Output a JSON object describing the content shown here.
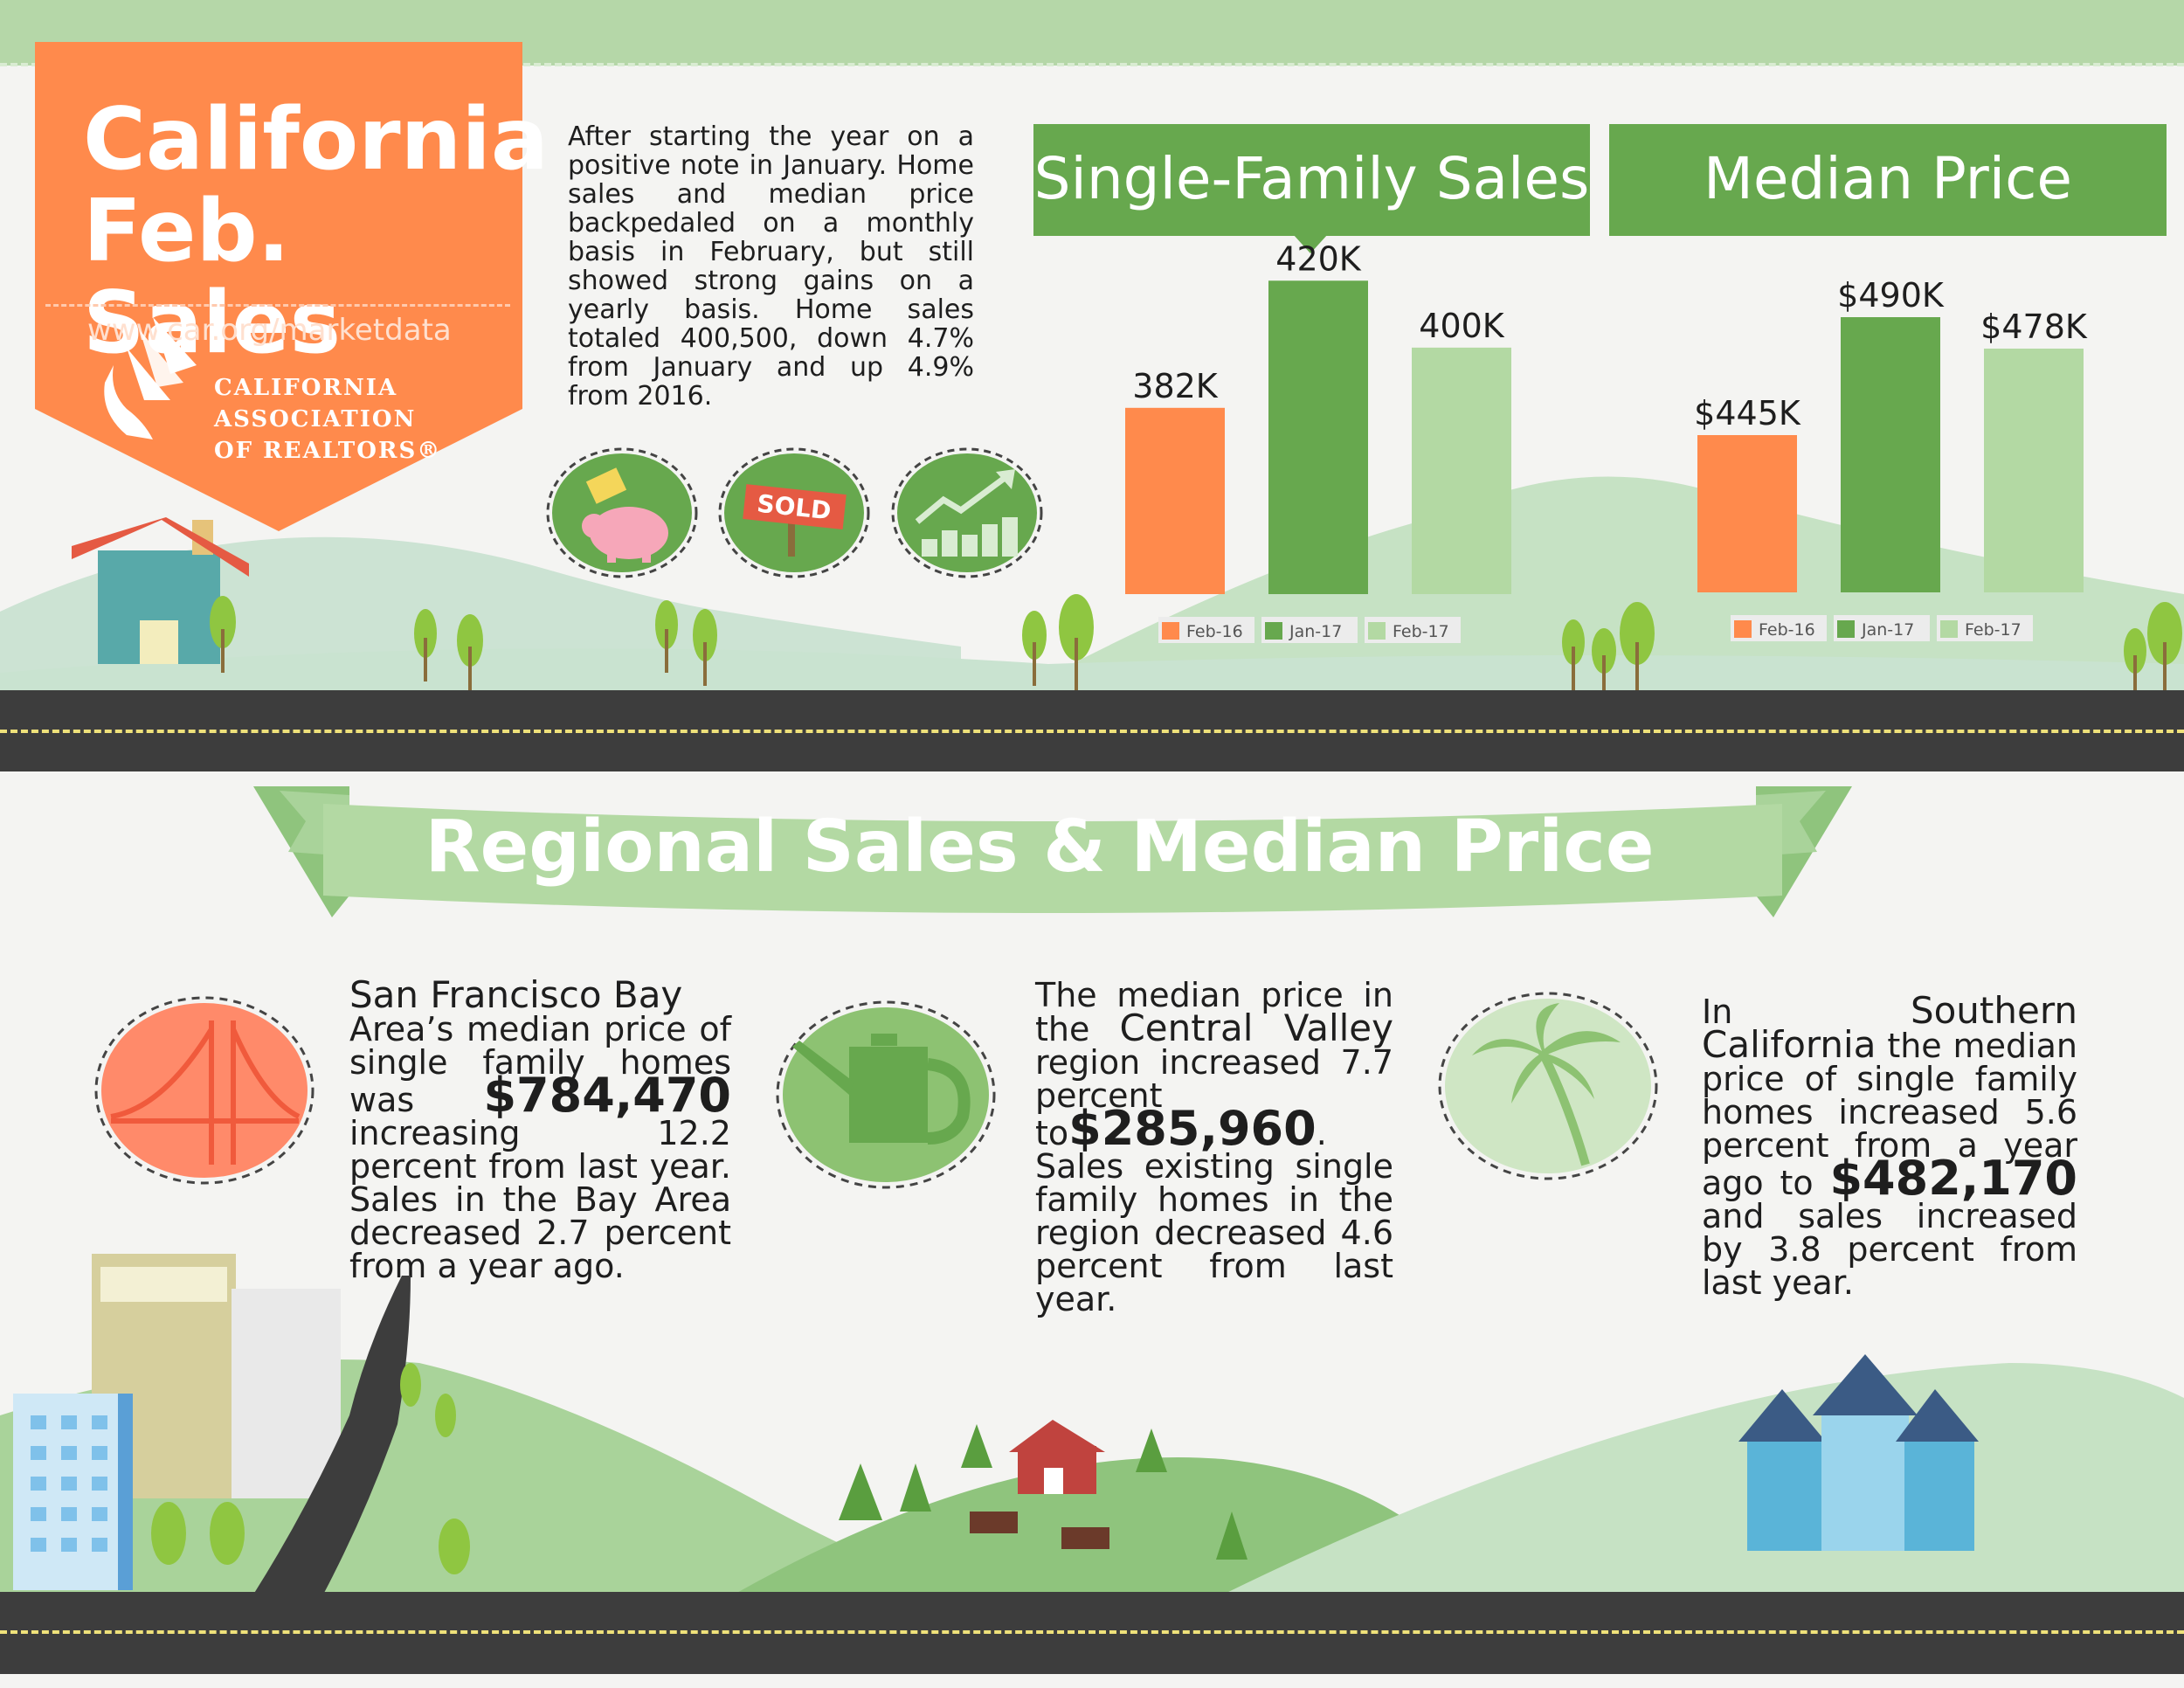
{
  "banner": {
    "title_line1": "California",
    "title_line2": "Feb. Sales",
    "url": "www.car.org/marketdata",
    "org_line1": "CALIFORNIA",
    "org_line2": "ASSOCIATION",
    "org_line3": "OF REALTORS®"
  },
  "intro_text": "After starting the year on a positive note in January. Home sales and median price backpedaled on a monthly basis in February, but still showed strong gains on a yearly basis. Home sales totaled 400,500, down 4.7% from January and up 4.9% from 2016.",
  "icons": [
    "piggy-bank-icon",
    "sold-sign-icon",
    "growth-chart-icon"
  ],
  "colors": {
    "feb16": "#ff8a4c",
    "jan17": "#67a84e",
    "feb17": "#b3d9a3",
    "banner": "#ff8a4c",
    "title_green": "#67a84e"
  },
  "chart_data": [
    {
      "type": "bar",
      "title": "Single-Family Sales",
      "categories": [
        "Feb-16",
        "Jan-17",
        "Feb-17"
      ],
      "values": [
        382,
        420,
        400
      ],
      "labels": [
        "382K",
        "420K",
        "400K"
      ],
      "legend": [
        "Feb-16",
        "Jan-17",
        "Feb-17"
      ]
    },
    {
      "type": "bar",
      "title": "Median Price",
      "categories": [
        "Feb-16",
        "Jan-17",
        "Feb-17"
      ],
      "values": [
        445,
        490,
        478
      ],
      "labels": [
        "$445K",
        "$490K",
        "$478K"
      ],
      "legend": [
        "Feb-16",
        "Jan-17",
        "Feb-17"
      ]
    }
  ],
  "regional": {
    "title": "Regional Sales & Median Price",
    "sf": {
      "name": "San Francisco Bay",
      "text1": "Area’s median price of single family homes was",
      "price": "$784,470",
      "text2": "increasing 12.2 percent from last year. Sales in the Bay Area decreased 2.7 percent from a year ago."
    },
    "cv": {
      "text1": "The median price in the",
      "name": "Central Valley",
      "text2": "region increased 7.7 percent to",
      "price": "$285,960",
      "text3": ". Sales existing single family homes in the region decreased 4.6 percent from last year."
    },
    "sc": {
      "text1": "In",
      "name": "Southern California",
      "text2": "the median price of single family homes increased 5.6 percent from a year ago to",
      "price": "$482,170",
      "text3": "and sales increased by 3.8 percent from last year."
    }
  }
}
